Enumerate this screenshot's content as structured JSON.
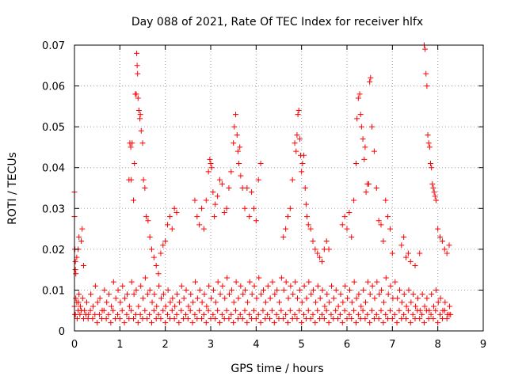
{
  "chart_data": {
    "type": "scatter",
    "title": "Day 088 of 2021, Rate Of TEC Index for receiver hlfx",
    "xlabel": "GPS time / hours",
    "ylabel": "ROTI / TECUs",
    "xlim": [
      0,
      9
    ],
    "ylim": [
      0,
      0.07
    ],
    "xticks": [
      0,
      1,
      2,
      3,
      4,
      5,
      6,
      7,
      8,
      9
    ],
    "yticks": [
      0,
      0.01,
      0.02,
      0.03,
      0.04,
      0.05,
      0.06,
      0.07
    ],
    "xtick_labels": [
      "0",
      "1",
      "2",
      "3",
      "4",
      "5",
      "6",
      "7",
      "8",
      "9"
    ],
    "ytick_labels": [
      "0",
      "0.01",
      "0.02",
      "0.03",
      "0.04",
      "0.05",
      "0.06",
      "0.07"
    ],
    "grid": true,
    "marker": "+",
    "color": "#ff0000",
    "series": [
      {
        "name": "ROTI",
        "x": [
          0.0,
          0.02,
          0.05,
          0.08,
          0.1,
          0.13,
          0.18,
          0.22,
          0.27,
          0.31,
          0.36,
          0.41,
          0.46,
          0.51,
          0.56,
          0.61,
          0.66,
          0.71,
          0.76,
          0.81,
          0.86,
          0.91,
          0.96,
          1.01,
          1.06,
          1.11,
          1.16,
          1.21,
          1.26,
          1.31,
          1.36,
          1.41,
          1.46,
          1.51,
          1.56,
          1.61,
          1.66,
          1.71,
          1.76,
          1.81,
          1.86,
          1.91,
          1.96,
          2.01,
          2.06,
          2.11,
          2.16,
          2.21,
          2.26,
          2.31,
          2.36,
          2.41,
          2.46,
          2.51,
          2.56,
          2.61,
          2.66,
          2.71,
          2.76,
          2.81,
          2.86,
          2.91,
          2.96,
          3.01,
          3.06,
          3.11,
          3.16,
          3.21,
          3.26,
          3.31,
          3.36,
          3.41,
          3.46,
          3.51,
          3.56,
          3.61,
          3.66,
          3.71,
          3.76,
          3.81,
          3.86,
          3.91,
          3.96,
          4.01,
          4.06,
          4.11,
          4.16,
          4.21,
          4.26,
          4.31,
          4.36,
          4.41,
          4.46,
          4.51,
          4.56,
          4.61,
          4.66,
          4.71,
          4.76,
          4.81,
          4.86,
          4.91,
          4.96,
          5.01,
          5.06,
          5.11,
          5.16,
          5.21,
          5.26,
          5.31,
          5.36,
          5.41,
          5.46,
          5.51,
          5.56,
          5.61,
          5.66,
          5.71,
          5.76,
          5.81,
          5.86,
          5.91,
          5.96,
          6.01,
          6.06,
          6.11,
          6.16,
          6.21,
          6.26,
          6.31,
          6.36,
          6.41,
          6.46,
          6.51,
          6.56,
          6.61,
          6.66,
          6.71,
          6.76,
          6.81,
          6.86,
          6.91,
          6.96,
          7.01,
          7.06,
          7.11,
          7.16,
          7.21,
          7.26,
          7.31,
          7.36,
          7.41,
          7.46,
          7.51,
          7.56,
          7.61,
          7.66,
          7.71,
          7.76,
          7.81,
          7.86,
          7.91,
          7.96,
          8.01,
          8.06,
          8.11,
          8.16,
          8.21,
          8.26,
          8.28,
          0.01,
          0.03,
          0.06,
          0.09,
          0.12,
          0.15,
          0.2,
          0.25,
          0.3,
          0.35,
          0.4,
          0.45,
          0.5,
          0.55,
          0.6,
          0.65,
          0.7,
          0.75,
          0.8,
          0.85,
          0.9,
          0.95,
          1.0,
          1.05,
          1.1,
          1.15,
          1.2,
          1.25,
          1.3,
          1.35,
          1.4,
          1.45,
          1.5,
          1.55,
          1.6,
          1.65,
          1.7,
          1.75,
          1.8,
          1.85,
          1.9,
          1.95,
          2.0,
          2.05,
          2.1,
          2.15,
          2.2,
          2.25,
          2.3,
          2.35,
          2.4,
          2.45,
          2.5,
          2.55,
          2.6,
          2.65,
          2.7,
          2.75,
          2.8,
          2.85,
          2.9,
          2.95,
          3.0,
          3.05,
          3.1,
          3.15,
          3.2,
          3.25,
          3.3,
          3.35,
          3.4,
          3.45,
          3.5,
          3.55,
          3.6,
          3.65,
          3.7,
          3.75,
          3.8,
          3.85,
          3.9,
          3.95,
          4.0,
          4.05,
          4.1,
          4.15,
          4.2,
          4.25,
          4.3,
          4.35,
          4.4,
          4.45,
          4.5,
          4.55,
          4.6,
          4.65,
          4.7,
          4.75,
          4.8,
          4.85,
          4.9,
          4.95,
          5.0,
          5.05,
          5.1,
          5.15,
          5.2,
          5.25,
          5.3,
          5.35,
          5.4,
          5.45,
          5.5,
          5.55,
          5.6,
          5.65,
          5.7,
          5.75,
          5.8,
          5.85,
          5.9,
          5.95,
          6.0,
          6.05,
          6.1,
          6.15,
          6.2,
          6.25,
          6.3,
          6.35,
          6.4,
          6.45,
          6.5,
          6.55,
          6.6,
          6.65,
          6.7,
          6.75,
          6.8,
          6.85,
          6.9,
          6.95,
          7.0,
          7.05,
          7.1,
          7.15,
          7.2,
          7.25,
          7.3,
          7.35,
          7.4,
          7.45,
          7.5,
          7.55,
          7.6,
          7.65,
          7.7,
          7.75,
          7.8,
          7.85,
          7.9,
          7.95,
          8.0,
          8.05,
          8.1,
          8.15,
          8.2,
          8.25,
          0.0,
          0.0,
          0.01,
          0.02,
          0.05,
          0.1,
          0.15,
          0.2,
          0.17,
          0.08,
          0.03,
          0.02,
          1.2,
          1.22,
          1.24,
          1.25,
          1.27,
          1.3,
          1.32,
          1.34,
          1.36,
          1.37,
          1.38,
          1.39,
          1.4,
          1.42,
          1.44,
          1.45,
          1.47,
          1.5,
          1.52,
          1.55,
          1.58,
          1.62,
          1.66,
          1.7,
          1.75,
          1.8,
          1.85,
          1.9,
          1.95,
          2.0,
          2.05,
          2.1,
          2.15,
          2.2,
          2.25,
          2.65,
          2.7,
          2.75,
          2.8,
          2.85,
          2.9,
          2.95,
          2.98,
          3.0,
          3.02,
          3.05,
          3.08,
          3.1,
          3.15,
          3.2,
          3.25,
          3.3,
          3.35,
          3.4,
          3.45,
          3.5,
          3.52,
          3.55,
          3.58,
          3.6,
          3.62,
          3.64,
          3.66,
          3.7,
          3.75,
          3.8,
          3.85,
          3.9,
          3.95,
          4.0,
          4.05,
          4.1,
          4.6,
          4.65,
          4.7,
          4.75,
          4.8,
          4.85,
          4.88,
          4.9,
          4.92,
          4.94,
          4.96,
          4.98,
          5.0,
          5.02,
          5.05,
          5.08,
          5.1,
          5.12,
          5.15,
          5.2,
          5.25,
          5.3,
          5.35,
          5.4,
          5.45,
          5.5,
          5.55,
          5.6,
          5.9,
          5.95,
          6.0,
          6.05,
          6.1,
          6.15,
          6.2,
          6.22,
          6.25,
          6.28,
          6.3,
          6.32,
          6.35,
          6.38,
          6.4,
          6.42,
          6.45,
          6.48,
          6.5,
          6.52,
          6.55,
          6.6,
          6.65,
          6.7,
          6.75,
          6.8,
          6.85,
          6.9,
          6.95,
          7.0,
          7.2,
          7.25,
          7.3,
          7.35,
          7.4,
          7.5,
          7.6,
          7.7,
          7.72,
          7.74,
          7.76,
          7.78,
          7.8,
          7.82,
          7.84,
          7.86,
          7.88,
          7.9,
          7.92,
          7.94,
          7.96,
          8.0,
          8.05,
          8.1,
          8.15,
          8.2,
          8.25
        ],
        "y": [
          0.006,
          0.004,
          0.007,
          0.005,
          0.009,
          0.006,
          0.008,
          0.005,
          0.007,
          0.004,
          0.009,
          0.006,
          0.011,
          0.007,
          0.008,
          0.005,
          0.01,
          0.007,
          0.009,
          0.006,
          0.012,
          0.008,
          0.01,
          0.007,
          0.011,
          0.008,
          0.009,
          0.006,
          0.012,
          0.009,
          0.01,
          0.006,
          0.011,
          0.008,
          0.013,
          0.009,
          0.01,
          0.007,
          0.009,
          0.006,
          0.011,
          0.008,
          0.009,
          0.006,
          0.01,
          0.007,
          0.008,
          0.006,
          0.009,
          0.007,
          0.011,
          0.008,
          0.01,
          0.006,
          0.009,
          0.007,
          0.012,
          0.008,
          0.01,
          0.007,
          0.009,
          0.006,
          0.011,
          0.008,
          0.01,
          0.007,
          0.012,
          0.009,
          0.011,
          0.008,
          0.013,
          0.009,
          0.01,
          0.007,
          0.012,
          0.008,
          0.011,
          0.009,
          0.01,
          0.007,
          0.012,
          0.009,
          0.011,
          0.008,
          0.013,
          0.009,
          0.01,
          0.007,
          0.011,
          0.008,
          0.012,
          0.009,
          0.01,
          0.007,
          0.013,
          0.01,
          0.012,
          0.008,
          0.011,
          0.009,
          0.012,
          0.008,
          0.01,
          0.007,
          0.011,
          0.008,
          0.012,
          0.009,
          0.01,
          0.007,
          0.011,
          0.008,
          0.01,
          0.006,
          0.009,
          0.007,
          0.011,
          0.008,
          0.01,
          0.006,
          0.009,
          0.007,
          0.011,
          0.008,
          0.01,
          0.007,
          0.012,
          0.008,
          0.009,
          0.006,
          0.01,
          0.007,
          0.012,
          0.009,
          0.011,
          0.008,
          0.012,
          0.009,
          0.01,
          0.007,
          0.013,
          0.009,
          0.011,
          0.008,
          0.012,
          0.008,
          0.01,
          0.007,
          0.009,
          0.006,
          0.01,
          0.007,
          0.009,
          0.006,
          0.008,
          0.005,
          0.009,
          0.006,
          0.008,
          0.005,
          0.009,
          0.006,
          0.01,
          0.007,
          0.008,
          0.005,
          0.007,
          0.004,
          0.006,
          0.004,
          0.004,
          0.008,
          0.003,
          0.007,
          0.004,
          0.005,
          0.003,
          0.004,
          0.003,
          0.005,
          0.003,
          0.004,
          0.002,
          0.004,
          0.003,
          0.005,
          0.003,
          0.004,
          0.002,
          0.005,
          0.003,
          0.004,
          0.003,
          0.005,
          0.002,
          0.004,
          0.003,
          0.005,
          0.003,
          0.004,
          0.002,
          0.004,
          0.003,
          0.005,
          0.003,
          0.004,
          0.002,
          0.005,
          0.003,
          0.004,
          0.003,
          0.005,
          0.002,
          0.004,
          0.003,
          0.005,
          0.003,
          0.004,
          0.002,
          0.005,
          0.003,
          0.004,
          0.003,
          0.005,
          0.002,
          0.004,
          0.003,
          0.005,
          0.003,
          0.004,
          0.002,
          0.005,
          0.003,
          0.004,
          0.003,
          0.005,
          0.002,
          0.004,
          0.003,
          0.005,
          0.003,
          0.004,
          0.002,
          0.005,
          0.003,
          0.004,
          0.003,
          0.005,
          0.002,
          0.004,
          0.003,
          0.005,
          0.003,
          0.004,
          0.002,
          0.005,
          0.003,
          0.004,
          0.003,
          0.005,
          0.002,
          0.004,
          0.003,
          0.005,
          0.003,
          0.004,
          0.002,
          0.005,
          0.003,
          0.004,
          0.003,
          0.005,
          0.002,
          0.004,
          0.003,
          0.005,
          0.003,
          0.004,
          0.002,
          0.005,
          0.003,
          0.004,
          0.003,
          0.005,
          0.002,
          0.004,
          0.003,
          0.005,
          0.003,
          0.004,
          0.002,
          0.005,
          0.003,
          0.004,
          0.003,
          0.005,
          0.002,
          0.004,
          0.003,
          0.005,
          0.003,
          0.004,
          0.002,
          0.005,
          0.003,
          0.004,
          0.003,
          0.005,
          0.002,
          0.004,
          0.003,
          0.005,
          0.003,
          0.004,
          0.002,
          0.005,
          0.003,
          0.004,
          0.003,
          0.005,
          0.002,
          0.004,
          0.003,
          0.005,
          0.003,
          0.004,
          0.002,
          0.005,
          0.003,
          0.004,
          0.003,
          0.005,
          0.002,
          0.004,
          0.003,
          0.005,
          0.003,
          0.004,
          0.034,
          0.028,
          0.02,
          0.015,
          0.018,
          0.023,
          0.022,
          0.016,
          0.025,
          0.02,
          0.014,
          0.017,
          0.037,
          0.046,
          0.045,
          0.037,
          0.046,
          0.032,
          0.041,
          0.058,
          0.058,
          0.068,
          0.065,
          0.063,
          0.057,
          0.054,
          0.052,
          0.053,
          0.049,
          0.046,
          0.037,
          0.035,
          0.028,
          0.027,
          0.023,
          0.02,
          0.018,
          0.016,
          0.014,
          0.019,
          0.021,
          0.022,
          0.026,
          0.028,
          0.025,
          0.03,
          0.029,
          0.032,
          0.028,
          0.026,
          0.03,
          0.025,
          0.032,
          0.039,
          0.042,
          0.041,
          0.04,
          0.034,
          0.028,
          0.031,
          0.033,
          0.037,
          0.036,
          0.029,
          0.03,
          0.035,
          0.039,
          0.046,
          0.05,
          0.053,
          0.048,
          0.044,
          0.041,
          0.045,
          0.038,
          0.035,
          0.03,
          0.035,
          0.028,
          0.034,
          0.03,
          0.027,
          0.037,
          0.041,
          0.023,
          0.025,
          0.028,
          0.03,
          0.037,
          0.046,
          0.044,
          0.048,
          0.053,
          0.054,
          0.047,
          0.043,
          0.039,
          0.041,
          0.043,
          0.035,
          0.031,
          0.028,
          0.026,
          0.025,
          0.022,
          0.02,
          0.019,
          0.018,
          0.017,
          0.02,
          0.022,
          0.02,
          0.026,
          0.028,
          0.025,
          0.029,
          0.023,
          0.032,
          0.041,
          0.052,
          0.057,
          0.058,
          0.053,
          0.05,
          0.047,
          0.042,
          0.045,
          0.034,
          0.036,
          0.036,
          0.061,
          0.062,
          0.05,
          0.044,
          0.035,
          0.027,
          0.026,
          0.022,
          0.032,
          0.028,
          0.025,
          0.019,
          0.021,
          0.023,
          0.018,
          0.019,
          0.017,
          0.016,
          0.019,
          0.07,
          0.069,
          0.063,
          0.06,
          0.048,
          0.046,
          0.045,
          0.041,
          0.04,
          0.036,
          0.035,
          0.034,
          0.033,
          0.032,
          0.025,
          0.023,
          0.022,
          0.02,
          0.019,
          0.021
        ]
      }
    ]
  }
}
